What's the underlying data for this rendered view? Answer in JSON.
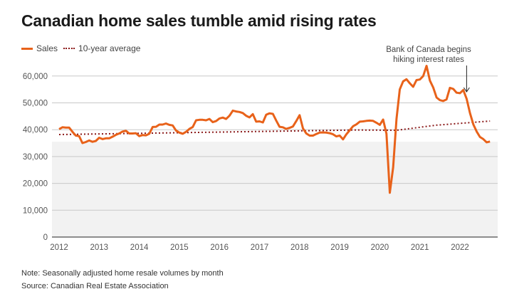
{
  "chart_data": {
    "type": "line",
    "title": "Canadian home sales tumble amid rising rates",
    "xlabel": "",
    "ylabel": "",
    "ylim": [
      0,
      65000
    ],
    "yticks": [
      0,
      10000,
      20000,
      30000,
      40000,
      50000,
      60000
    ],
    "ytick_labels": [
      "0",
      "10,000",
      "20,000",
      "30,000",
      "40,000",
      "50,000",
      "60,000"
    ],
    "xticks": [
      "2012",
      "2013",
      "2014",
      "2015",
      "2016",
      "2017",
      "2018",
      "2019",
      "2020",
      "2021",
      "2022"
    ],
    "x_start": "2012-01",
    "x_frequency": "monthly",
    "grid": true,
    "legend_position": "top-left",
    "shaded_band": {
      "from": 0,
      "to": 35500,
      "color": "#f2f2f2"
    },
    "series": [
      {
        "name": "Sales",
        "style": "solid",
        "color": "#e8621a",
        "values": [
          40200,
          40900,
          40800,
          40800,
          39200,
          37800,
          37600,
          35000,
          35400,
          36000,
          35500,
          35800,
          37000,
          36500,
          36800,
          36800,
          37400,
          38100,
          38600,
          39300,
          39600,
          38600,
          38600,
          38700,
          37600,
          38000,
          37900,
          38500,
          41000,
          41100,
          41900,
          41900,
          42300,
          41800,
          41600,
          39700,
          38900,
          38500,
          39200,
          40300,
          41000,
          43500,
          43700,
          43700,
          43500,
          44000,
          42800,
          43200,
          44200,
          44500,
          44000,
          45200,
          47100,
          46800,
          46600,
          46200,
          45200,
          44600,
          45800,
          43000,
          43100,
          42700,
          45600,
          46100,
          45900,
          43400,
          41100,
          40900,
          40300,
          40700,
          41200,
          43200,
          45400,
          40500,
          38600,
          37800,
          37800,
          38400,
          38900,
          39000,
          38900,
          38700,
          38300,
          37500,
          37800,
          36400,
          38300,
          39800,
          41300,
          42000,
          43000,
          43100,
          43300,
          43400,
          43300,
          42600,
          41800,
          43800,
          38500,
          16500,
          26000,
          44000,
          55000,
          58000,
          58800,
          57300,
          56000,
          58500,
          58700,
          60000,
          63800,
          58300,
          55700,
          52000,
          51000,
          50700,
          51300,
          55600,
          55200,
          53800,
          53600,
          54800,
          51500,
          46200,
          42000,
          39300,
          37300,
          36500,
          35300,
          35600
        ]
      },
      {
        "name": "10-year average",
        "style": "dotted",
        "color": "#8b1a1a",
        "values_linear_anchors": [
          [
            "2012-01",
            38200
          ],
          [
            "2019-06",
            39900
          ],
          [
            "2020-06",
            39800
          ],
          [
            "2021-06",
            41700
          ],
          [
            "2022-10",
            43200
          ]
        ]
      }
    ],
    "annotations": [
      {
        "text_lines": [
          "Bank of Canada begins",
          "hiking interest rates"
        ],
        "points_to": "2022-03",
        "type": "down-arrow"
      }
    ],
    "notes": [
      "Note: Seasonally adjusted home resale volumes by month",
      "Source: Canadian Real Estate Association"
    ]
  }
}
